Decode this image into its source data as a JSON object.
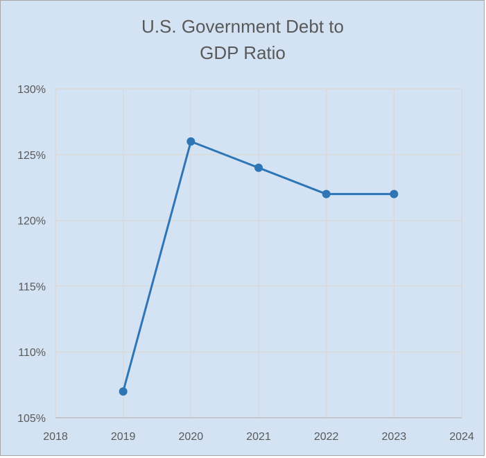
{
  "chart_data": {
    "type": "line",
    "title_lines": [
      "U.S. Government Debt to",
      "GDP Ratio"
    ],
    "x": [
      2019,
      2020,
      2021,
      2022,
      2023
    ],
    "series": [
      {
        "values": [
          107,
          126,
          124,
          122,
          122
        ]
      }
    ],
    "xlim": [
      2018,
      2024
    ],
    "ylim": [
      105,
      130
    ],
    "x_ticks": [
      "2018",
      "2019",
      "2020",
      "2021",
      "2022",
      "2023",
      "2024"
    ],
    "y_ticks": [
      "105%",
      "110%",
      "115%",
      "120%",
      "125%",
      "130%"
    ],
    "grid": "both",
    "legend": "none",
    "colors": {
      "background": "#d3e3f3",
      "series": "#2e75b6",
      "grid": "#d9d9d9",
      "text": "#595959"
    }
  }
}
